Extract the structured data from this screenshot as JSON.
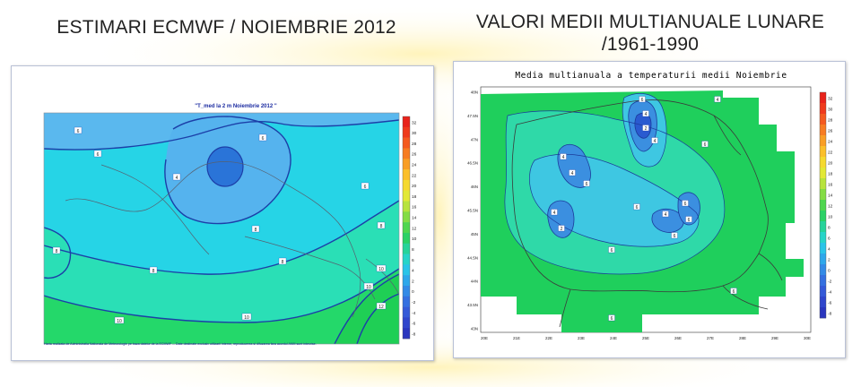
{
  "headings": {
    "left": "ESTIMARI ECMWF / NOIEMBRIE 2012",
    "right_line1": "VALORI MEDII MULTIANUALE LUNARE",
    "right_line2": "/1961-1990"
  },
  "left_map": {
    "title": "\"T_med la 2 m Noiembrie 2012 \"",
    "footnote": "Harta realizata de Administratia Nationala de Meteorologie pe baza datelor de la ECMWF ... Date destinate exclusiv utilizarii interne, reproducerea si difuzarea fara acordul ANM sunt interzise.",
    "colorbar_ticks": [
      "32",
      "30",
      "28",
      "26",
      "24",
      "22",
      "20",
      "18",
      "16",
      "14",
      "12",
      "10",
      "8",
      "6",
      "4",
      "2",
      "0",
      "-2",
      "-4",
      "-6",
      "-8"
    ],
    "contour_labels": [
      "6",
      "4",
      "6",
      "6",
      "6",
      "8",
      "8",
      "8",
      "8",
      "8",
      "10",
      "10",
      "10",
      "10",
      "12"
    ],
    "colors": {
      "deep": "#2a74d8",
      "mid": "#55b3ee",
      "cyan": "#26d4e6",
      "aqua": "#2adfb6",
      "green": "#24d86a",
      "line": "#1c3fa8",
      "border": "#566070"
    }
  },
  "right_map": {
    "title": "Media multianuala a temperaturii medii Noiembrie",
    "colorbar_ticks": [
      "32",
      "30",
      "28",
      "26",
      "24",
      "22",
      "20",
      "18",
      "16",
      "14",
      "12",
      "10",
      "8",
      "6",
      "4",
      "2",
      "0",
      "-2",
      "-4",
      "-6",
      "-8"
    ],
    "lat_labels": [
      "48N",
      "47.5N",
      "47N",
      "46.5N",
      "46N",
      "45.5N",
      "45N",
      "44.5N",
      "44N",
      "43.5N",
      "43N"
    ],
    "lon_labels": [
      "20E",
      "21E",
      "22E",
      "23E",
      "24E",
      "25E",
      "26E",
      "27E",
      "28E",
      "29E",
      "30E"
    ],
    "contour_labels": [
      "6",
      "4",
      "2",
      "4",
      "4",
      "4",
      "6",
      "4",
      "2",
      "6",
      "4",
      "6",
      "6",
      "6",
      "4",
      "6",
      "6",
      "6",
      "6"
    ],
    "colors": {
      "green": "#1fcf5c",
      "light": "#2fd9a8",
      "cyan": "#3ec7e2",
      "blue": "#3b8fe0",
      "deep": "#2a5ad0",
      "line": "#1b3b9a",
      "border": "#3b3b3b"
    }
  }
}
